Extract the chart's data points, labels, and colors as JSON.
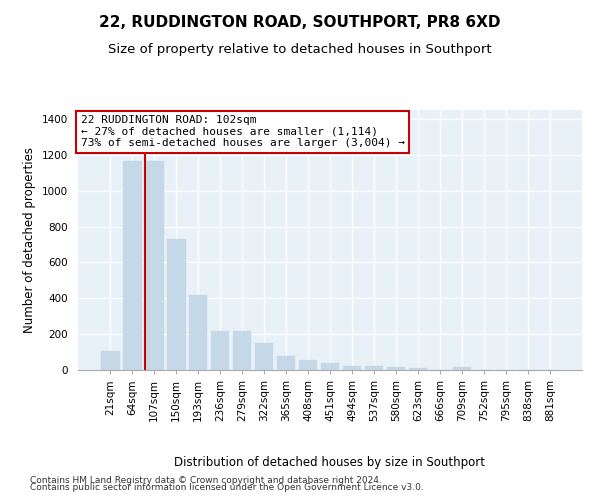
{
  "title1": "22, RUDDINGTON ROAD, SOUTHPORT, PR8 6XD",
  "title2": "Size of property relative to detached houses in Southport",
  "xlabel": "Distribution of detached houses by size in Southport",
  "ylabel": "Number of detached properties",
  "footer1": "Contains HM Land Registry data © Crown copyright and database right 2024.",
  "footer2": "Contains public sector information licensed under the Open Government Licence v3.0.",
  "categories": [
    "21sqm",
    "64sqm",
    "107sqm",
    "150sqm",
    "193sqm",
    "236sqm",
    "279sqm",
    "322sqm",
    "365sqm",
    "408sqm",
    "451sqm",
    "494sqm",
    "537sqm",
    "580sqm",
    "623sqm",
    "666sqm",
    "709sqm",
    "752sqm",
    "795sqm",
    "838sqm",
    "881sqm"
  ],
  "values": [
    107,
    1165,
    1165,
    728,
    420,
    218,
    218,
    150,
    80,
    55,
    40,
    25,
    20,
    18,
    13,
    0,
    18,
    0,
    0,
    0,
    0
  ],
  "bar_color": "#c5d8e8",
  "bar_edgecolor": "#c5d8e8",
  "vline_index": 2,
  "vline_color": "#cc0000",
  "annotation_text": "22 RUDDINGTON ROAD: 102sqm\n← 27% of detached houses are smaller (1,114)\n73% of semi-detached houses are larger (3,004) →",
  "annotation_box_facecolor": "#ffffff",
  "annotation_box_edgecolor": "#cc0000",
  "ylim": [
    0,
    1450
  ],
  "yticks": [
    0,
    200,
    400,
    600,
    800,
    1000,
    1200,
    1400
  ],
  "background_color": "#e8f0f8",
  "grid_color": "#ffffff",
  "title1_fontsize": 11,
  "title2_fontsize": 9.5,
  "xlabel_fontsize": 8.5,
  "ylabel_fontsize": 8.5,
  "tick_fontsize": 7.5,
  "annotation_fontsize": 8,
  "footer_fontsize": 6.5
}
